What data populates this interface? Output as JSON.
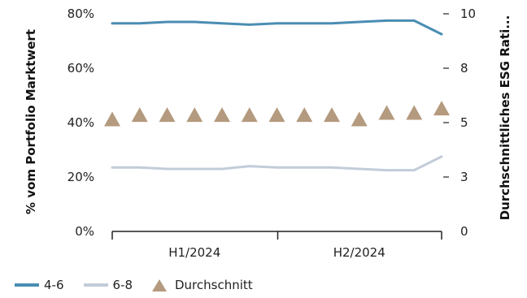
{
  "chart_data": {
    "type": "line",
    "periods": [
      "H1/2024",
      "H2/2024"
    ],
    "x_count": 13,
    "ylabel_left": "% vom Portfolio Marktwert",
    "ylabel_right": "Durchschnittliches ESG Rati...",
    "left_ticks": [
      "0%",
      "20%",
      "40%",
      "60%",
      "80%"
    ],
    "right_ticks": [
      "0",
      "3",
      "5",
      "8",
      "10"
    ],
    "ylim_left": [
      0,
      80
    ],
    "ylim_right": [
      0,
      10
    ],
    "grid": false,
    "legend_position": "bottom-left",
    "series": [
      {
        "name": "4-6",
        "axis": "left",
        "color": "#4a8db3",
        "values": [
          76.5,
          76.5,
          77,
          77,
          76.5,
          76,
          76.5,
          76.5,
          76.5,
          77,
          77.5,
          77.5,
          72.5
        ]
      },
      {
        "name": "6-8",
        "axis": "left",
        "color": "#c3ccd9",
        "values": [
          23.5,
          23.5,
          23,
          23,
          23,
          24,
          23.5,
          23.5,
          23.5,
          23,
          22.5,
          22.5,
          27.5
        ]
      },
      {
        "name": "Durchschnitt",
        "axis": "right",
        "color": "#b49a7e",
        "marker": "triangle",
        "values": [
          5.1,
          5.3,
          5.3,
          5.3,
          5.3,
          5.3,
          5.3,
          5.3,
          5.3,
          5.1,
          5.4,
          5.4,
          5.6
        ]
      }
    ]
  }
}
